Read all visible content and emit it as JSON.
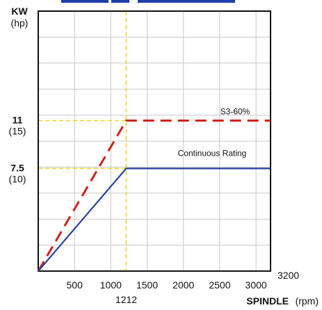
{
  "chart_data": {
    "type": "line",
    "title": "",
    "ylabel": "KW",
    "ylabel_unit": "(hp)",
    "xlabel": "SPINDLE",
    "xlabel_unit": "(rpm)",
    "xlim": [
      0,
      3200
    ],
    "ylim": [
      0,
      19
    ],
    "x_ticks": [
      500,
      1000,
      1500,
      2000,
      2500,
      3000
    ],
    "x_ticks_labels": [
      "500",
      "1000",
      "1500",
      "2000",
      "2500",
      "3000"
    ],
    "x_max_label": "3200",
    "x_marker_value": 1212,
    "x_marker_label": "1212",
    "y_ticks": [
      {
        "value": 11,
        "kw": "11",
        "hp": "(15)"
      },
      {
        "value": 7.5,
        "kw": "7.5",
        "hp": "(10)"
      }
    ],
    "grid": true,
    "series": [
      {
        "name": "S3-60%",
        "color": "#d0221f",
        "dash": true,
        "x": [
          0,
          1212,
          3200
        ],
        "y": [
          0,
          11,
          11
        ]
      },
      {
        "name": "Continuous Rating",
        "color": "#2b3f9c",
        "dash": false,
        "x": [
          0,
          1212,
          3200
        ],
        "y": [
          0,
          7.5,
          7.5
        ]
      }
    ]
  },
  "colors": {
    "frame": "#111111",
    "grid": "#c8c8c8",
    "guide": "#f2d21a",
    "title_bar": "#1f3fa8"
  }
}
